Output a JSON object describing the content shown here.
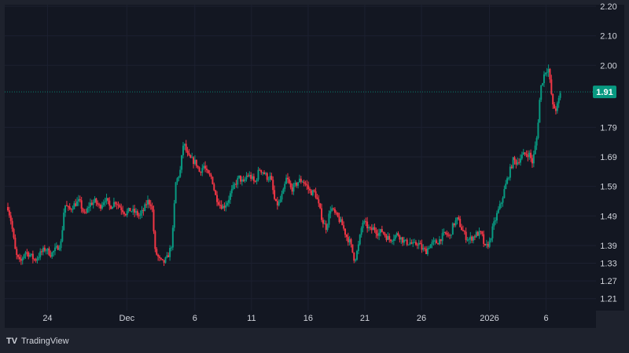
{
  "brand": {
    "name": "TradingView"
  },
  "price_label": {
    "value": "1.91",
    "color": "#089981"
  },
  "colors": {
    "up": "#089981",
    "down": "#f23645",
    "background": "#131722",
    "frame": "#1e222d",
    "text": "#d1d4dc"
  },
  "chart_data": {
    "type": "candlestick",
    "title": "",
    "xlabel": "",
    "ylabel": "",
    "ylim": [
      1.18,
      2.2
    ],
    "y_ticks": [
      "2.20",
      "2.10",
      "2.00",
      "1.79",
      "1.69",
      "1.59",
      "1.49",
      "1.39",
      "1.33",
      "1.27",
      "1.21"
    ],
    "y_tick_values": [
      2.2,
      2.1,
      2.0,
      1.79,
      1.69,
      1.59,
      1.49,
      1.39,
      1.33,
      1.27,
      1.21
    ],
    "x_ticks": [
      "24",
      "Dec",
      "6",
      "11",
      "16",
      "21",
      "26",
      "2026",
      "6"
    ],
    "x_tick_days": [
      24,
      31,
      37,
      42,
      47,
      52,
      57,
      63,
      68
    ],
    "x_range": [
      20.5,
      71.5
    ],
    "grid": true,
    "current_price": 1.91,
    "path": [
      [
        20.5,
        1.52
      ],
      [
        20.8,
        1.47
      ],
      [
        21.2,
        1.36
      ],
      [
        21.6,
        1.33
      ],
      [
        22.0,
        1.37
      ],
      [
        22.4,
        1.36
      ],
      [
        22.9,
        1.34
      ],
      [
        23.3,
        1.36
      ],
      [
        23.8,
        1.38
      ],
      [
        24.3,
        1.36
      ],
      [
        24.8,
        1.38
      ],
      [
        25.2,
        1.4
      ],
      [
        25.5,
        1.53
      ],
      [
        25.9,
        1.51
      ],
      [
        26.4,
        1.53
      ],
      [
        26.8,
        1.54
      ],
      [
        27.3,
        1.49
      ],
      [
        27.7,
        1.53
      ],
      [
        28.2,
        1.54
      ],
      [
        28.6,
        1.52
      ],
      [
        29.1,
        1.55
      ],
      [
        29.5,
        1.52
      ],
      [
        30.0,
        1.54
      ],
      [
        30.4,
        1.52
      ],
      [
        30.9,
        1.5
      ],
      [
        31.3,
        1.51
      ],
      [
        31.8,
        1.5
      ],
      [
        32.1,
        1.49
      ],
      [
        32.5,
        1.51
      ],
      [
        32.8,
        1.54
      ],
      [
        33.2,
        1.53
      ],
      [
        33.5,
        1.37
      ],
      [
        33.9,
        1.34
      ],
      [
        34.2,
        1.33
      ],
      [
        34.6,
        1.35
      ],
      [
        35.0,
        1.4
      ],
      [
        35.3,
        1.6
      ],
      [
        35.7,
        1.64
      ],
      [
        36.0,
        1.74
      ],
      [
        36.4,
        1.69
      ],
      [
        36.7,
        1.68
      ],
      [
        37.1,
        1.67
      ],
      [
        37.4,
        1.64
      ],
      [
        37.8,
        1.66
      ],
      [
        38.1,
        1.63
      ],
      [
        38.5,
        1.62
      ],
      [
        38.8,
        1.56
      ],
      [
        39.2,
        1.53
      ],
      [
        39.5,
        1.52
      ],
      [
        39.9,
        1.54
      ],
      [
        40.2,
        1.57
      ],
      [
        40.6,
        1.6
      ],
      [
        40.9,
        1.62
      ],
      [
        41.3,
        1.6
      ],
      [
        41.6,
        1.63
      ],
      [
        42.0,
        1.62
      ],
      [
        42.3,
        1.6
      ],
      [
        42.7,
        1.65
      ],
      [
        43.0,
        1.64
      ],
      [
        43.4,
        1.62
      ],
      [
        43.7,
        1.62
      ],
      [
        44.1,
        1.53
      ],
      [
        44.4,
        1.53
      ],
      [
        44.8,
        1.57
      ],
      [
        45.1,
        1.62
      ],
      [
        45.5,
        1.58
      ],
      [
        45.8,
        1.59
      ],
      [
        46.2,
        1.61
      ],
      [
        46.5,
        1.61
      ],
      [
        46.9,
        1.59
      ],
      [
        47.2,
        1.57
      ],
      [
        47.6,
        1.57
      ],
      [
        47.9,
        1.53
      ],
      [
        48.3,
        1.47
      ],
      [
        48.6,
        1.45
      ],
      [
        49.0,
        1.52
      ],
      [
        49.3,
        1.5
      ],
      [
        49.7,
        1.48
      ],
      [
        50.0,
        1.46
      ],
      [
        50.4,
        1.42
      ],
      [
        50.7,
        1.4
      ],
      [
        51.1,
        1.34
      ],
      [
        51.4,
        1.38
      ],
      [
        51.8,
        1.47
      ],
      [
        52.1,
        1.46
      ],
      [
        52.5,
        1.44
      ],
      [
        52.8,
        1.45
      ],
      [
        53.2,
        1.43
      ],
      [
        53.5,
        1.44
      ],
      [
        53.9,
        1.42
      ],
      [
        54.2,
        1.41
      ],
      [
        54.6,
        1.42
      ],
      [
        54.9,
        1.43
      ],
      [
        55.3,
        1.41
      ],
      [
        55.6,
        1.4
      ],
      [
        56.0,
        1.4
      ],
      [
        56.3,
        1.39
      ],
      [
        56.7,
        1.4
      ],
      [
        57.0,
        1.38
      ],
      [
        57.4,
        1.37
      ],
      [
        57.7,
        1.39
      ],
      [
        58.1,
        1.4
      ],
      [
        58.4,
        1.4
      ],
      [
        58.8,
        1.42
      ],
      [
        59.1,
        1.43
      ],
      [
        59.5,
        1.42
      ],
      [
        59.8,
        1.46
      ],
      [
        60.2,
        1.48
      ],
      [
        60.5,
        1.45
      ],
      [
        60.9,
        1.42
      ],
      [
        61.2,
        1.41
      ],
      [
        61.6,
        1.42
      ],
      [
        61.9,
        1.43
      ],
      [
        62.3,
        1.43
      ],
      [
        62.6,
        1.38
      ],
      [
        63.0,
        1.4
      ],
      [
        63.3,
        1.45
      ],
      [
        63.7,
        1.5
      ],
      [
        64.0,
        1.53
      ],
      [
        64.4,
        1.59
      ],
      [
        64.7,
        1.63
      ],
      [
        65.1,
        1.68
      ],
      [
        65.4,
        1.67
      ],
      [
        65.8,
        1.69
      ],
      [
        66.1,
        1.7
      ],
      [
        66.5,
        1.7
      ],
      [
        66.8,
        1.67
      ],
      [
        67.2,
        1.76
      ],
      [
        67.5,
        1.92
      ],
      [
        67.9,
        1.98
      ],
      [
        68.2,
        1.99
      ],
      [
        68.6,
        1.86
      ],
      [
        68.9,
        1.85
      ],
      [
        69.3,
        1.91
      ]
    ]
  }
}
